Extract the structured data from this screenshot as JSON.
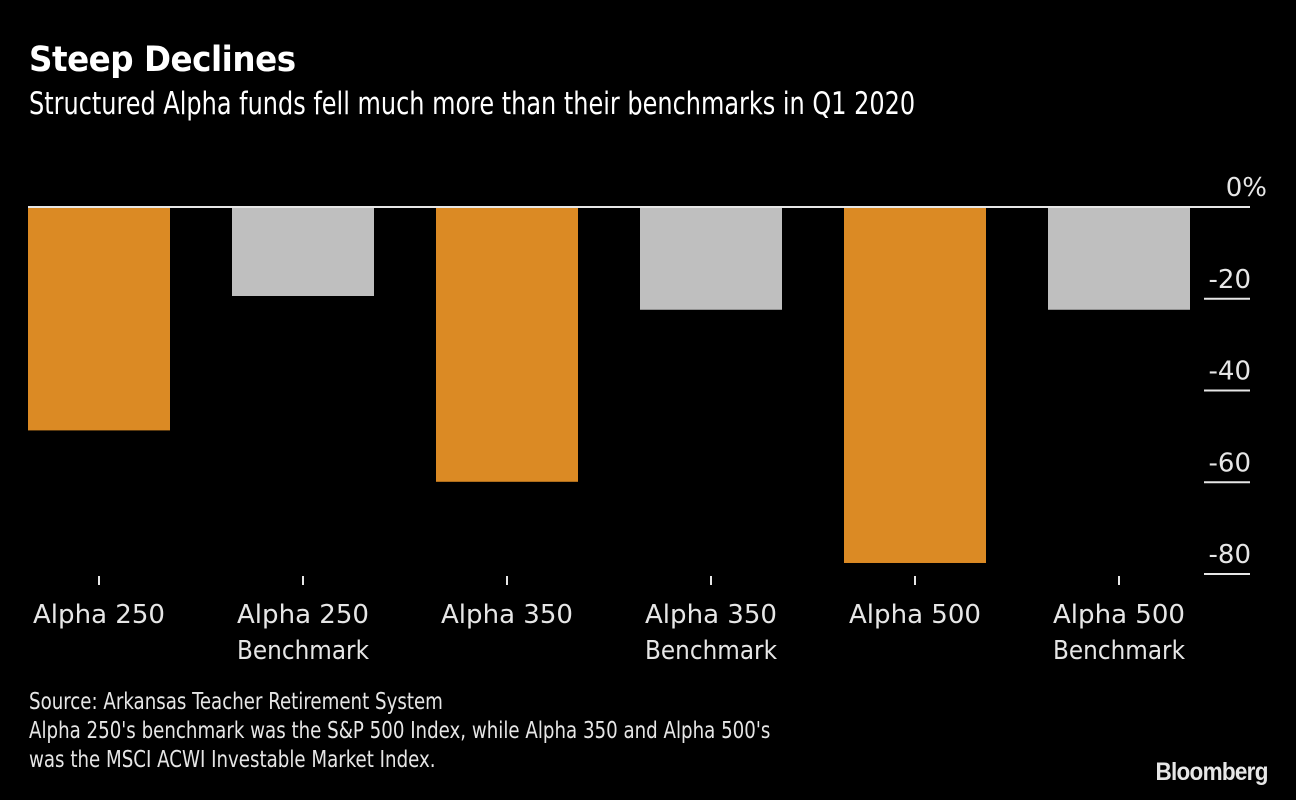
{
  "header": {
    "title": "Steep Declines",
    "subtitle": "Structured Alpha funds fell much more than their benchmarks in Q1 2020"
  },
  "chart_data": {
    "type": "bar",
    "title": "Steep Declines",
    "subtitle": "Structured Alpha funds fell much more than their benchmarks in Q1 2020",
    "xlabel": "",
    "ylabel": "",
    "categories": [
      [
        "Alpha 250"
      ],
      [
        "Alpha 250",
        "Benchmark"
      ],
      [
        "Alpha 350"
      ],
      [
        "Alpha 350",
        "Benchmark"
      ],
      [
        "Alpha 500"
      ],
      [
        "Alpha 500",
        "Benchmark"
      ]
    ],
    "category_names": [
      "Alpha 250",
      "Alpha 250 Benchmark",
      "Alpha 350",
      "Alpha 350 Benchmark",
      "Alpha 500",
      "Alpha 500 Benchmark"
    ],
    "values": [
      -48.7,
      -19.4,
      -59.9,
      -22.4,
      -77.6,
      -22.4
    ],
    "bar_colors": [
      "#db8a24",
      "#bfbfbf",
      "#db8a24",
      "#bfbfbf",
      "#db8a24",
      "#bfbfbf"
    ],
    "ylim": [
      -80,
      0
    ],
    "yticks": [
      0,
      -20,
      -40,
      -60,
      -80
    ],
    "ytick_labels": [
      "0%",
      "-20",
      "-40",
      "-60",
      "-80"
    ],
    "y_axis_position": "right",
    "grid": false,
    "legend": "none"
  },
  "colors": {
    "fund": "#db8a24",
    "benchmark": "#bfbfbf",
    "background": "#000000",
    "text": "#e6e6e6"
  },
  "footer": {
    "source": "Source: Arkansas Teacher Retirement System",
    "note_line1": "Alpha 250's benchmark was the S&P 500 Index, while Alpha 350 and Alpha 500's",
    "note_line2": "was the MSCI ACWI Investable Market Index.",
    "brand": "Bloomberg"
  }
}
